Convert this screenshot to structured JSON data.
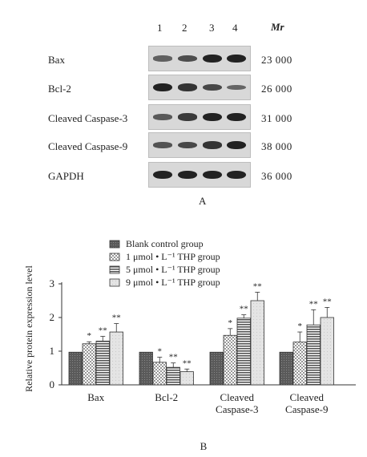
{
  "blot": {
    "lanes": [
      "1",
      "2",
      "3",
      "4"
    ],
    "mr_label": "Mr",
    "panel_label": "A",
    "rows": [
      {
        "protein": "Bax",
        "mr": "23 000",
        "intensity": [
          0.45,
          0.6,
          0.95,
          0.95
        ]
      },
      {
        "protein": "Bcl-2",
        "mr": "26 000",
        "intensity": [
          0.95,
          0.8,
          0.65,
          0.4
        ]
      },
      {
        "protein": "Cleaved Caspase-3",
        "mr": "31 000",
        "intensity": [
          0.5,
          0.75,
          0.95,
          0.95
        ]
      },
      {
        "protein": "Cleaved Caspase-9",
        "mr": "38 000",
        "intensity": [
          0.55,
          0.65,
          0.8,
          0.95
        ]
      },
      {
        "protein": "GAPDH",
        "mr": "36 000",
        "intensity": [
          0.95,
          0.95,
          0.95,
          0.95
        ]
      }
    ]
  },
  "chart_data": {
    "type": "bar",
    "panel_label": "B",
    "categories": [
      "Bax",
      "Bcl-2",
      "Cleaved\nCaspase-3",
      "Cleaved\nCaspase-9"
    ],
    "ylabel": "Relative protein expression level",
    "ylim": [
      0,
      3
    ],
    "yticks": [
      0,
      1,
      2,
      3
    ],
    "legend_position": "top",
    "series": [
      {
        "name": "Blank control group",
        "values": [
          0.97,
          0.97,
          0.97,
          0.97
        ],
        "errors": [
          0,
          0,
          0,
          0
        ],
        "sig": [
          "",
          "",
          "",
          ""
        ],
        "pattern": "dark"
      },
      {
        "name": "1 μmol • L⁻¹ THP group",
        "values": [
          1.22,
          0.67,
          1.47,
          1.27
        ],
        "errors": [
          0.06,
          0.15,
          0.2,
          0.3
        ],
        "sig": [
          "*",
          "*",
          "*",
          "*"
        ],
        "pattern": "check"
      },
      {
        "name": "5 μmol • L⁻¹ THP group",
        "values": [
          1.3,
          0.52,
          1.98,
          1.78
        ],
        "errors": [
          0.14,
          0.13,
          0.1,
          0.45
        ],
        "sig": [
          "**",
          "**",
          "**",
          "**"
        ],
        "pattern": "hlines"
      },
      {
        "name": "9 μmol • L⁻¹ THP group",
        "values": [
          1.57,
          0.39,
          2.5,
          2.0
        ],
        "errors": [
          0.25,
          0.08,
          0.25,
          0.3
        ],
        "sig": [
          "**",
          "**",
          "**",
          "**"
        ],
        "pattern": "light"
      }
    ]
  }
}
